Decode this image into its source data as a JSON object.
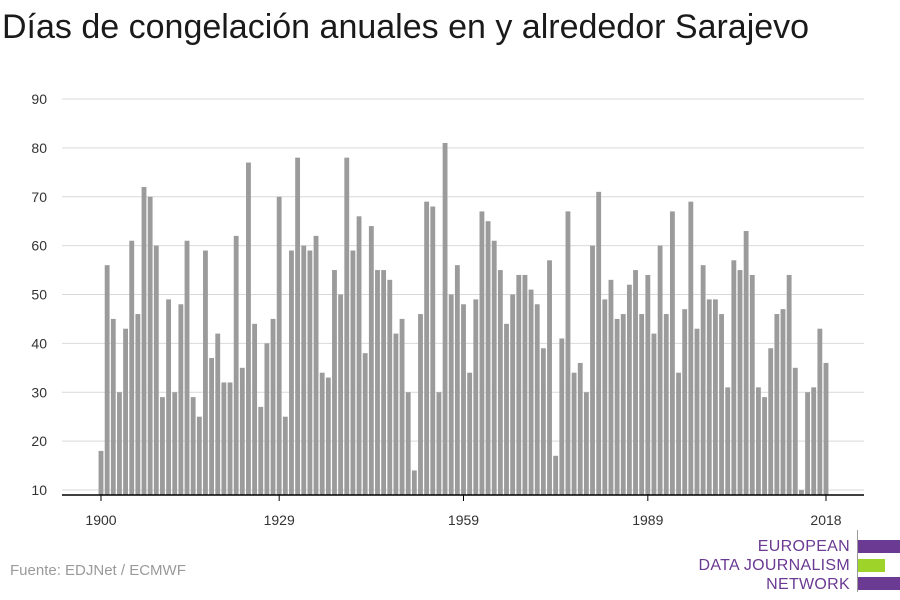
{
  "title": "Días de congelación anuales en y alrededor Sarajevo",
  "source": "Fuente: EDJNet / ECMWF",
  "logo": {
    "line1": "EUROPEAN",
    "line2": "DATA JOURNALISM",
    "line3": "NETWORK",
    "colors": {
      "purple": "#6b3a93",
      "green": "#9ed32a"
    }
  },
  "colors": {
    "bar": "#9b9b9b",
    "grid": "#d9d9d9",
    "axis": "#000000",
    "tick_text": "#333333"
  },
  "chart_data": {
    "type": "bar",
    "title": "Días de congelación anuales en y alrededor Sarajevo",
    "xlabel": "",
    "ylabel": "",
    "x_start": 1900,
    "x_end": 2018,
    "x_ticks": [
      1900,
      1929,
      1959,
      1989,
      2018
    ],
    "y_ticks": [
      10,
      20,
      30,
      40,
      50,
      60,
      70,
      80,
      90
    ],
    "ylim": [
      10,
      90
    ],
    "grid": true,
    "x": [
      1900,
      1901,
      1902,
      1903,
      1904,
      1905,
      1906,
      1907,
      1908,
      1909,
      1910,
      1911,
      1912,
      1913,
      1914,
      1915,
      1916,
      1917,
      1918,
      1919,
      1920,
      1921,
      1922,
      1923,
      1924,
      1925,
      1926,
      1927,
      1928,
      1929,
      1930,
      1931,
      1932,
      1933,
      1934,
      1935,
      1936,
      1937,
      1938,
      1939,
      1940,
      1941,
      1942,
      1943,
      1944,
      1945,
      1946,
      1947,
      1948,
      1949,
      1950,
      1951,
      1952,
      1953,
      1954,
      1955,
      1956,
      1957,
      1958,
      1959,
      1960,
      1961,
      1962,
      1963,
      1964,
      1965,
      1966,
      1967,
      1968,
      1969,
      1970,
      1971,
      1972,
      1973,
      1974,
      1975,
      1976,
      1977,
      1978,
      1979,
      1980,
      1981,
      1982,
      1983,
      1984,
      1985,
      1986,
      1987,
      1988,
      1989,
      1990,
      1991,
      1992,
      1993,
      1994,
      1995,
      1996,
      1997,
      1998,
      1999,
      2000,
      2001,
      2002,
      2003,
      2004,
      2005,
      2006,
      2007,
      2008,
      2009,
      2010,
      2011,
      2012,
      2013,
      2014,
      2015,
      2016,
      2017,
      2018
    ],
    "values": [
      18,
      56,
      45,
      30,
      43,
      61,
      46,
      72,
      70,
      60,
      29,
      49,
      30,
      48,
      61,
      29,
      25,
      59,
      37,
      42,
      32,
      32,
      62,
      35,
      77,
      44,
      27,
      40,
      45,
      70,
      25,
      59,
      78,
      60,
      59,
      62,
      34,
      33,
      55,
      50,
      78,
      59,
      66,
      38,
      64,
      55,
      55,
      53,
      42,
      45,
      30,
      14,
      46,
      69,
      68,
      30,
      81,
      50,
      56,
      48,
      34,
      49,
      67,
      65,
      61,
      55,
      44,
      50,
      54,
      54,
      51,
      48,
      39,
      57,
      17,
      41,
      67,
      34,
      36,
      30,
      60,
      71,
      49,
      53,
      45,
      46,
      52,
      55,
      46,
      54,
      42,
      60,
      46,
      67,
      34,
      47,
      69,
      43,
      56,
      49,
      49,
      46,
      31,
      57,
      55,
      63,
      54,
      31,
      29,
      39,
      46,
      47,
      54,
      35,
      10,
      30,
      31,
      43,
      36
    ]
  }
}
